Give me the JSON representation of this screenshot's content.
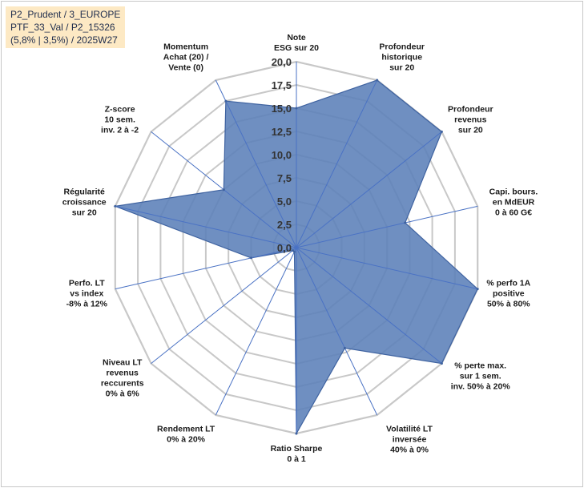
{
  "info_box": {
    "line1": "P2_Prudent / 3_EUROPE",
    "line2": "PTF_33_Val / P2_15326",
    "line3": "(5,8% | 3,5%) / 2025W27"
  },
  "chart_data": {
    "type": "radar",
    "rmin": 0,
    "rmax": 20,
    "ticks": [
      "0,0",
      "2,5",
      "5,0",
      "7,5",
      "10,0",
      "12,5",
      "15,0",
      "17,5",
      "20,0"
    ],
    "tick_values": [
      0,
      2.5,
      5,
      7.5,
      10,
      12.5,
      15,
      17.5,
      20
    ],
    "grid": true,
    "colors": {
      "fill": "#5b80b8",
      "stroke": "#3e62a0",
      "grid": "#c8c8c8",
      "spoke": "#4a72c4"
    },
    "axes": [
      {
        "label": [
          "Note",
          "ESG sur 20"
        ],
        "value": 15
      },
      {
        "label": [
          "Profondeur",
          "historique",
          "sur 20"
        ],
        "value": 20
      },
      {
        "label": [
          "Profondeur",
          "revenus",
          "sur 20"
        ],
        "value": 20
      },
      {
        "label": [
          "Capi. bours.",
          "en MdEUR",
          "0 à 60 G€"
        ],
        "value": 12
      },
      {
        "label": [
          "% perfo 1A",
          "positive",
          "50% à 80%"
        ],
        "value": 20
      },
      {
        "label": [
          "% perte max.",
          "sur 1 sem.",
          "inv. 50% à 20%"
        ],
        "value": 20
      },
      {
        "label": [
          "Volatilité LT",
          "inversée",
          "40% à 0%"
        ],
        "value": 12
      },
      {
        "label": [
          "Ratio Sharpe",
          "0 à 1"
        ],
        "value": 20
      },
      {
        "label": [
          "Rendement LT",
          "0% à 20%"
        ],
        "value": 0.5
      },
      {
        "label": [
          "Niveau LT",
          "revenus",
          "reccurents",
          "0% à 6%"
        ],
        "value": 0.5
      },
      {
        "label": [
          "Perfo. LT",
          "vs index",
          "-8% à 12%"
        ],
        "value": 5
      },
      {
        "label": [
          "Régularité",
          "croissance",
          "sur 20"
        ],
        "value": 20
      },
      {
        "label": [
          "Z-score",
          "10 sem.",
          "inv. 2 à -2"
        ],
        "value": 10
      },
      {
        "label": [
          "Momentum",
          "Achat (20) /",
          "Vente (0)"
        ],
        "value": 17.5
      }
    ]
  }
}
